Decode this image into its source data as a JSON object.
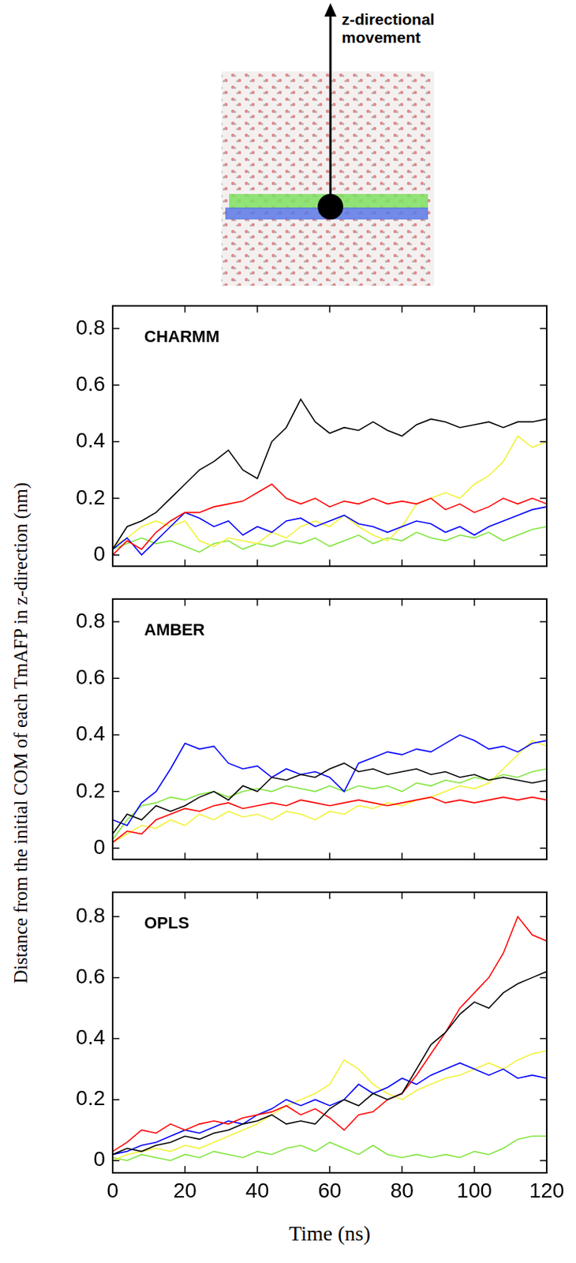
{
  "figure": {
    "annotation": "z-directional movement",
    "x_label": "Time (ns)",
    "y_label": "Distance from the initial COM of each TmAFP in z-direction (nm)"
  },
  "chart_data": [
    {
      "type": "line",
      "title": "CHARMM",
      "x": [
        0,
        4,
        8,
        12,
        16,
        20,
        24,
        28,
        32,
        36,
        40,
        44,
        48,
        52,
        56,
        60,
        64,
        68,
        72,
        76,
        80,
        84,
        88,
        92,
        96,
        100,
        104,
        108,
        112,
        116,
        120
      ],
      "series": [
        {
          "color": "#000000",
          "values": [
            0.02,
            0.1,
            0.12,
            0.15,
            0.2,
            0.25,
            0.3,
            0.33,
            0.37,
            0.3,
            0.27,
            0.4,
            0.45,
            0.55,
            0.47,
            0.43,
            0.45,
            0.44,
            0.47,
            0.44,
            0.42,
            0.46,
            0.48,
            0.47,
            0.45,
            0.46,
            0.47,
            0.45,
            0.47,
            0.47,
            0.48
          ]
        },
        {
          "color": "#ff0000",
          "values": [
            0.0,
            0.05,
            0.02,
            0.08,
            0.12,
            0.15,
            0.15,
            0.17,
            0.18,
            0.19,
            0.22,
            0.25,
            0.2,
            0.18,
            0.2,
            0.17,
            0.19,
            0.18,
            0.2,
            0.18,
            0.19,
            0.18,
            0.2,
            0.16,
            0.18,
            0.15,
            0.17,
            0.2,
            0.18,
            0.2,
            0.18
          ]
        },
        {
          "color": "#0000ff",
          "values": [
            0.02,
            0.06,
            0.0,
            0.05,
            0.1,
            0.15,
            0.13,
            0.1,
            0.12,
            0.07,
            0.1,
            0.08,
            0.12,
            0.13,
            0.1,
            0.12,
            0.14,
            0.11,
            0.1,
            0.08,
            0.1,
            0.12,
            0.11,
            0.08,
            0.1,
            0.07,
            0.1,
            0.12,
            0.14,
            0.16,
            0.17
          ]
        },
        {
          "color": "#f2f23a",
          "values": [
            0.03,
            0.06,
            0.1,
            0.12,
            0.1,
            0.12,
            0.05,
            0.03,
            0.06,
            0.05,
            0.04,
            0.08,
            0.06,
            0.1,
            0.12,
            0.1,
            0.14,
            0.1,
            0.07,
            0.05,
            0.1,
            0.18,
            0.2,
            0.22,
            0.2,
            0.25,
            0.28,
            0.33,
            0.42,
            0.38,
            0.4
          ]
        },
        {
          "color": "#80e63c",
          "values": [
            0.02,
            0.04,
            0.06,
            0.04,
            0.05,
            0.03,
            0.01,
            0.04,
            0.05,
            0.02,
            0.04,
            0.03,
            0.05,
            0.04,
            0.06,
            0.03,
            0.05,
            0.07,
            0.04,
            0.06,
            0.05,
            0.08,
            0.06,
            0.05,
            0.07,
            0.06,
            0.08,
            0.05,
            0.07,
            0.09,
            0.1
          ]
        }
      ],
      "xlim": [
        0,
        120
      ],
      "ylim": [
        -0.04,
        0.88
      ],
      "xticks": [
        0,
        20,
        40,
        60,
        80,
        100,
        120
      ],
      "yticks": [
        0,
        0.2,
        0.4,
        0.6,
        0.8
      ],
      "tick_labels": "y"
    },
    {
      "type": "line",
      "title": "AMBER",
      "x": [
        0,
        4,
        8,
        12,
        16,
        20,
        24,
        28,
        32,
        36,
        40,
        44,
        48,
        52,
        56,
        60,
        64,
        68,
        72,
        76,
        80,
        84,
        88,
        92,
        96,
        100,
        104,
        108,
        112,
        116,
        120
      ],
      "series": [
        {
          "color": "#000000",
          "values": [
            0.05,
            0.12,
            0.1,
            0.15,
            0.13,
            0.15,
            0.18,
            0.2,
            0.17,
            0.22,
            0.2,
            0.25,
            0.24,
            0.26,
            0.25,
            0.28,
            0.3,
            0.27,
            0.28,
            0.26,
            0.27,
            0.28,
            0.26,
            0.27,
            0.25,
            0.26,
            0.24,
            0.25,
            0.24,
            0.23,
            0.24
          ]
        },
        {
          "color": "#ff0000",
          "values": [
            0.02,
            0.06,
            0.05,
            0.1,
            0.12,
            0.14,
            0.13,
            0.15,
            0.16,
            0.14,
            0.15,
            0.16,
            0.15,
            0.17,
            0.16,
            0.15,
            0.16,
            0.17,
            0.16,
            0.15,
            0.16,
            0.17,
            0.18,
            0.16,
            0.17,
            0.16,
            0.17,
            0.18,
            0.17,
            0.18,
            0.17
          ]
        },
        {
          "color": "#0000ff",
          "values": [
            0.1,
            0.08,
            0.16,
            0.2,
            0.28,
            0.37,
            0.35,
            0.36,
            0.3,
            0.28,
            0.29,
            0.25,
            0.28,
            0.26,
            0.27,
            0.25,
            0.2,
            0.3,
            0.32,
            0.34,
            0.33,
            0.35,
            0.34,
            0.37,
            0.4,
            0.38,
            0.35,
            0.36,
            0.34,
            0.37,
            0.38
          ]
        },
        {
          "color": "#f2f23a",
          "values": [
            0.02,
            0.05,
            0.08,
            0.07,
            0.1,
            0.08,
            0.12,
            0.1,
            0.13,
            0.11,
            0.12,
            0.1,
            0.13,
            0.12,
            0.1,
            0.13,
            0.12,
            0.15,
            0.14,
            0.16,
            0.15,
            0.17,
            0.18,
            0.2,
            0.22,
            0.21,
            0.23,
            0.28,
            0.33,
            0.38,
            0.36
          ]
        },
        {
          "color": "#80e63c",
          "values": [
            0.03,
            0.1,
            0.15,
            0.16,
            0.18,
            0.17,
            0.19,
            0.2,
            0.18,
            0.2,
            0.21,
            0.2,
            0.22,
            0.21,
            0.2,
            0.22,
            0.2,
            0.22,
            0.21,
            0.22,
            0.2,
            0.23,
            0.22,
            0.24,
            0.23,
            0.25,
            0.24,
            0.26,
            0.25,
            0.27,
            0.28
          ]
        }
      ],
      "xlim": [
        0,
        120
      ],
      "ylim": [
        -0.04,
        0.88
      ],
      "xticks": [
        0,
        20,
        40,
        60,
        80,
        100,
        120
      ],
      "yticks": [
        0,
        0.2,
        0.4,
        0.6,
        0.8
      ],
      "tick_labels": "y"
    },
    {
      "type": "line",
      "title": "OPLS",
      "x": [
        0,
        4,
        8,
        12,
        16,
        20,
        24,
        28,
        32,
        36,
        40,
        44,
        48,
        52,
        56,
        60,
        64,
        68,
        72,
        76,
        80,
        84,
        88,
        92,
        96,
        100,
        104,
        108,
        112,
        116,
        120
      ],
      "series": [
        {
          "color": "#000000",
          "values": [
            0.02,
            0.04,
            0.03,
            0.05,
            0.06,
            0.08,
            0.07,
            0.09,
            0.1,
            0.12,
            0.13,
            0.15,
            0.12,
            0.13,
            0.12,
            0.17,
            0.2,
            0.18,
            0.22,
            0.2,
            0.22,
            0.3,
            0.38,
            0.42,
            0.48,
            0.52,
            0.5,
            0.55,
            0.58,
            0.6,
            0.62
          ]
        },
        {
          "color": "#ff0000",
          "values": [
            0.03,
            0.06,
            0.1,
            0.09,
            0.12,
            0.1,
            0.12,
            0.13,
            0.12,
            0.14,
            0.15,
            0.16,
            0.18,
            0.15,
            0.17,
            0.14,
            0.1,
            0.15,
            0.16,
            0.2,
            0.22,
            0.28,
            0.35,
            0.42,
            0.5,
            0.55,
            0.6,
            0.68,
            0.8,
            0.74,
            0.72
          ]
        },
        {
          "color": "#0000ff",
          "values": [
            0.02,
            0.03,
            0.05,
            0.06,
            0.08,
            0.1,
            0.09,
            0.11,
            0.13,
            0.12,
            0.15,
            0.17,
            0.2,
            0.18,
            0.2,
            0.18,
            0.2,
            0.25,
            0.22,
            0.24,
            0.27,
            0.25,
            0.28,
            0.3,
            0.32,
            0.3,
            0.28,
            0.3,
            0.27,
            0.28,
            0.27
          ]
        },
        {
          "color": "#f2f23a",
          "values": [
            0.0,
            0.02,
            0.03,
            0.04,
            0.03,
            0.05,
            0.04,
            0.06,
            0.08,
            0.1,
            0.12,
            0.15,
            0.18,
            0.2,
            0.22,
            0.25,
            0.33,
            0.3,
            0.25,
            0.22,
            0.2,
            0.23,
            0.25,
            0.27,
            0.28,
            0.3,
            0.32,
            0.3,
            0.33,
            0.35,
            0.36
          ]
        },
        {
          "color": "#80e63c",
          "values": [
            0.01,
            0.0,
            0.02,
            0.01,
            0.0,
            0.02,
            0.01,
            0.03,
            0.02,
            0.01,
            0.03,
            0.02,
            0.04,
            0.05,
            0.03,
            0.06,
            0.04,
            0.02,
            0.05,
            0.02,
            0.01,
            0.02,
            0.01,
            0.02,
            0.01,
            0.03,
            0.02,
            0.04,
            0.07,
            0.08,
            0.08
          ]
        }
      ],
      "xlim": [
        0,
        120
      ],
      "ylim": [
        -0.04,
        0.88
      ],
      "xticks": [
        0,
        20,
        40,
        60,
        80,
        100,
        120
      ],
      "yticks": [
        0,
        0.2,
        0.4,
        0.6,
        0.8
      ]
    }
  ]
}
